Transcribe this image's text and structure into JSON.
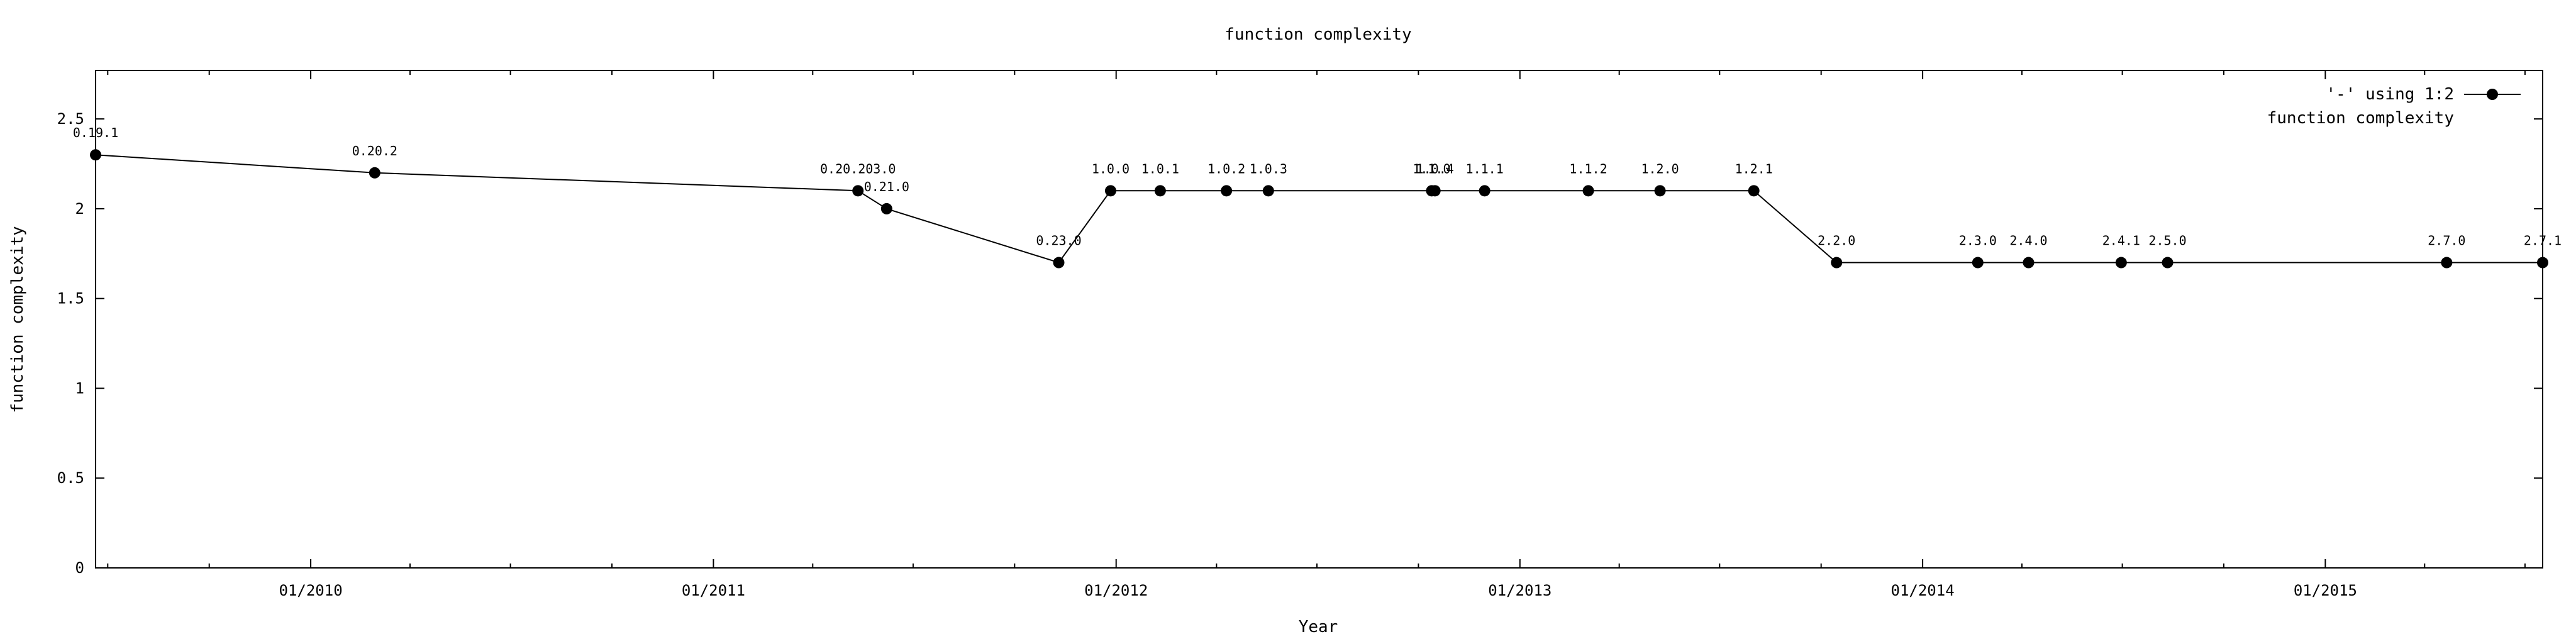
{
  "chart_data": {
    "type": "line",
    "title": "function complexity",
    "xlabel": "Year",
    "ylabel": "function complexity",
    "xlim": [
      "2009-06-20",
      "2015-07-17"
    ],
    "ylim": [
      0,
      2.77
    ],
    "x_ticks": [
      "2010-01-01",
      "2011-01-01",
      "2012-01-01",
      "2013-01-01",
      "2014-01-01",
      "2015-01-01"
    ],
    "x_tick_labels": [
      "01/2010",
      "01/2011",
      "01/2012",
      "01/2013",
      "01/2014",
      "01/2015"
    ],
    "y_ticks": [
      0,
      0.5,
      1,
      1.5,
      2,
      2.5
    ],
    "y_tick_labels": [
      "0",
      "0.5",
      "1",
      "1.5",
      "2",
      "2.5"
    ],
    "grid": false,
    "legend": {
      "position": "top-right",
      "entries": [
        "'-' using 1:2",
        "function complexity"
      ]
    },
    "series": [
      {
        "name": "'-' using 1:2",
        "points": [
          {
            "x": "2009-06-20",
            "y": 2.3,
            "label": "0.19.1"
          },
          {
            "x": "2010-02-28",
            "y": 2.2,
            "label": "0.20.2"
          },
          {
            "x": "2011-05-12",
            "y": 2.1,
            "label": "0.20.203.0"
          },
          {
            "x": "2011-06-07",
            "y": 2.0,
            "label": "0.21.0"
          },
          {
            "x": "2011-11-10",
            "y": 1.7,
            "label": "0.23.0"
          },
          {
            "x": "2011-12-27",
            "y": 2.1,
            "label": "1.0.0"
          },
          {
            "x": "2012-02-10",
            "y": 2.1,
            "label": "1.0.1"
          },
          {
            "x": "2012-04-10",
            "y": 2.1,
            "label": "1.0.2"
          },
          {
            "x": "2012-05-18",
            "y": 2.1,
            "label": "1.0.3"
          },
          {
            "x": "2012-10-13",
            "y": 2.1,
            "label": "1.1.0"
          },
          {
            "x": "2012-10-16",
            "y": 2.1,
            "label": "1.0.4"
          },
          {
            "x": "2012-11-30",
            "y": 2.1,
            "label": "1.1.1"
          },
          {
            "x": "2013-03-04",
            "y": 2.1,
            "label": "1.1.2"
          },
          {
            "x": "2013-05-08",
            "y": 2.1,
            "label": "1.2.0"
          },
          {
            "x": "2013-08-01",
            "y": 2.1,
            "label": "1.2.1"
          },
          {
            "x": "2013-10-15",
            "y": 1.7,
            "label": "2.2.0"
          },
          {
            "x": "2014-02-20",
            "y": 1.7,
            "label": "2.3.0"
          },
          {
            "x": "2014-04-07",
            "y": 1.7,
            "label": "2.4.0"
          },
          {
            "x": "2014-06-30",
            "y": 1.7,
            "label": "2.4.1"
          },
          {
            "x": "2014-08-11",
            "y": 1.7,
            "label": "2.5.0"
          },
          {
            "x": "2015-04-21",
            "y": 1.7,
            "label": "2.7.0"
          },
          {
            "x": "2015-07-17",
            "y": 1.7,
            "label": "2.7.1"
          }
        ]
      }
    ]
  }
}
